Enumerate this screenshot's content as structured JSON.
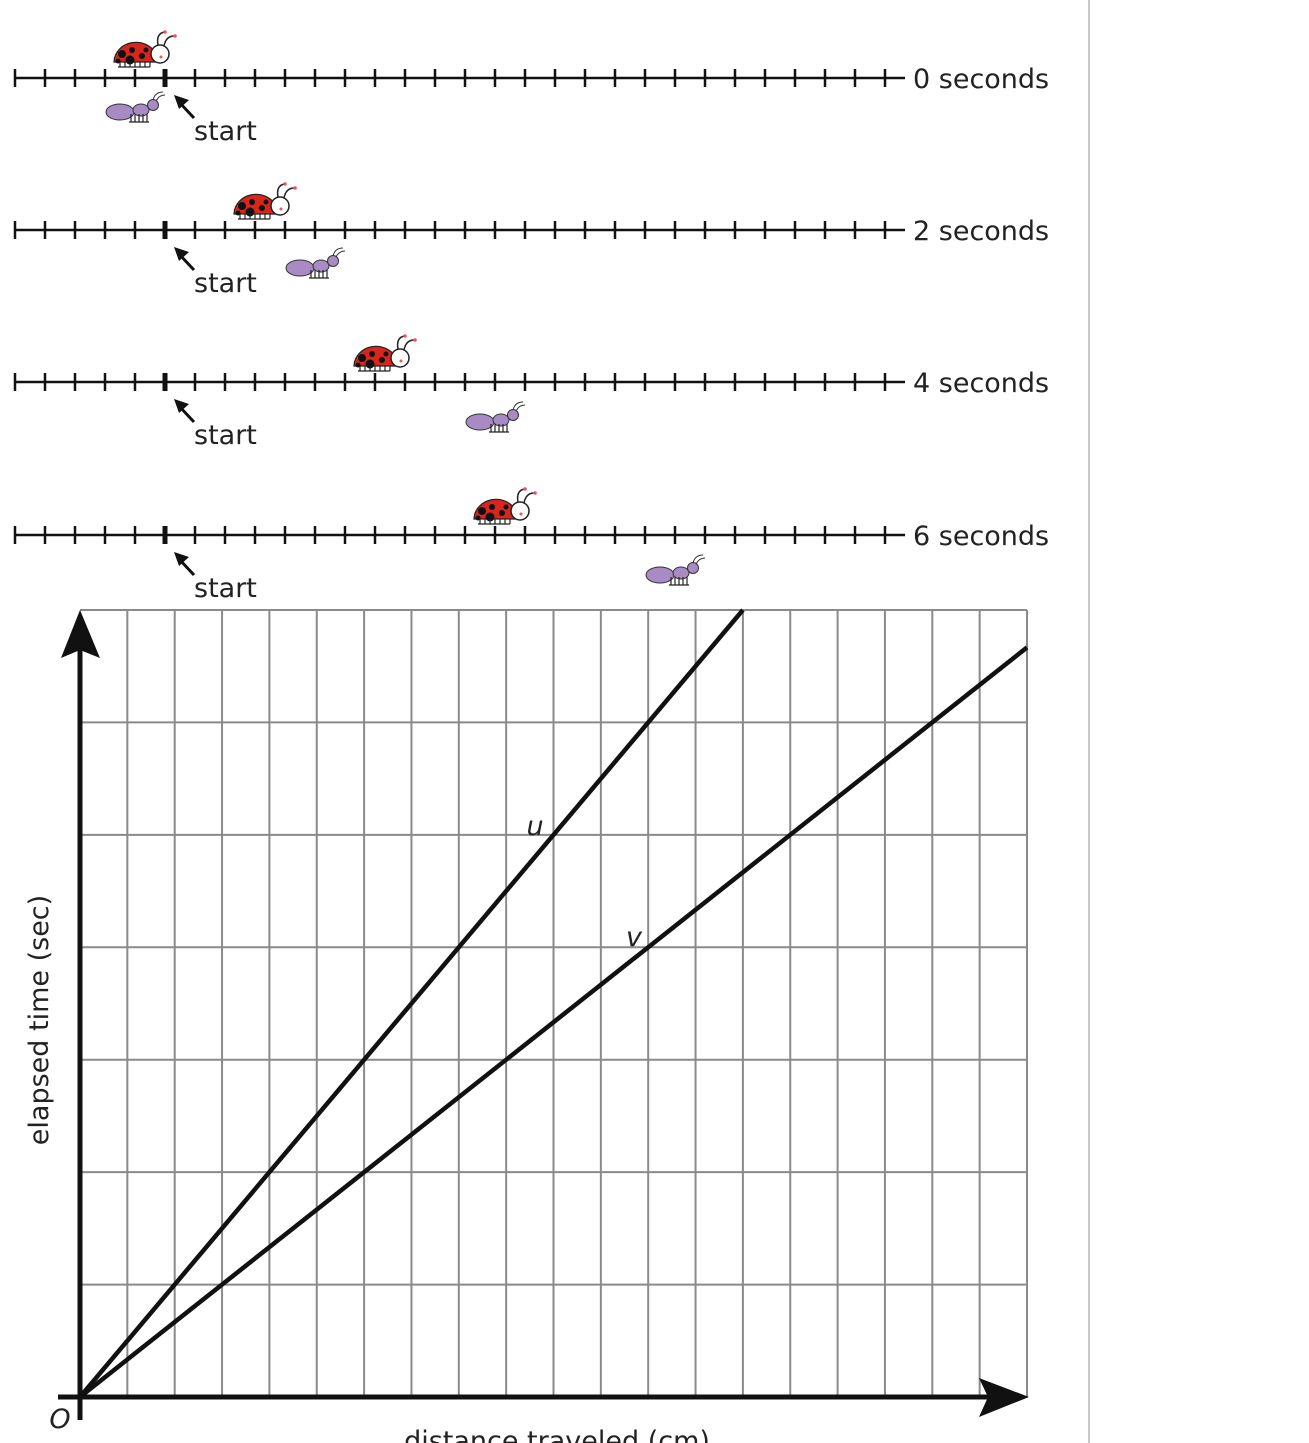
{
  "number_lines": [
    {
      "label": "0 seconds",
      "ladybug_ticks_from_start": 0,
      "ant_ticks_from_start": 0,
      "start_label": "start"
    },
    {
      "label": "2 seconds",
      "ladybug_ticks_from_start": 4,
      "ant_ticks_from_start": 6,
      "start_label": "start"
    },
    {
      "label": "4 seconds",
      "ladybug_ticks_from_start": 8,
      "ant_ticks_from_start": 12,
      "start_label": "start"
    },
    {
      "label": "6 seconds",
      "ladybug_ticks_from_start": 12,
      "ant_ticks_from_start": 18,
      "start_label": "start"
    }
  ],
  "tick_count": 30,
  "start_tick_index": 5,
  "colors": {
    "ladybug": "#d7261e",
    "ant": "#a88bc4",
    "grid": "#8a8a8a",
    "lines": "#111111"
  },
  "chart_data": {
    "type": "line",
    "xlabel": "distance traveled (cm)",
    "ylabel": "elapsed time (sec)",
    "origin_label": "O",
    "grid": true,
    "x_cells": 20,
    "y_cells": 7,
    "series": [
      {
        "name": "u",
        "points": [
          [
            0,
            0
          ],
          [
            14,
            7
          ]
        ]
      },
      {
        "name": "v",
        "points": [
          [
            0,
            0
          ],
          [
            20,
            6.667
          ]
        ]
      }
    ]
  }
}
